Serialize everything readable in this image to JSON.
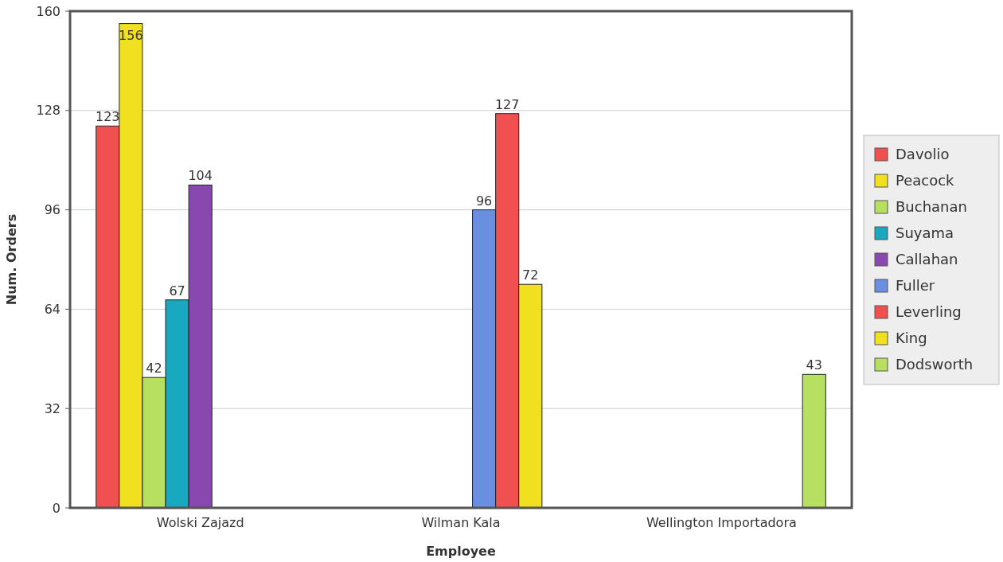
{
  "chart_data": {
    "type": "bar",
    "xlabel": "Employee",
    "ylabel": "Num. Orders",
    "categories": [
      "Wolski Zajazd",
      "Wilman Kala",
      "Wellington Importadora"
    ],
    "series": [
      {
        "name": "Davolio",
        "color": "#f05050",
        "values": [
          123,
          null,
          null
        ]
      },
      {
        "name": "Peacock",
        "color": "#f0e020",
        "values": [
          156,
          null,
          null
        ]
      },
      {
        "name": "Buchanan",
        "color": "#b8e060",
        "values": [
          42,
          null,
          null
        ]
      },
      {
        "name": "Suyama",
        "color": "#18a8c0",
        "values": [
          67,
          null,
          null
        ]
      },
      {
        "name": "Callahan",
        "color": "#8848b0",
        "values": [
          104,
          null,
          null
        ]
      },
      {
        "name": "Fuller",
        "color": "#6a8ee0",
        "values": [
          null,
          96,
          null
        ]
      },
      {
        "name": "Leverling",
        "color": "#f05050",
        "values": [
          null,
          127,
          null
        ]
      },
      {
        "name": "King",
        "color": "#f0e020",
        "values": [
          null,
          72,
          null
        ]
      },
      {
        "name": "Dodsworth",
        "color": "#b8e060",
        "values": [
          null,
          null,
          43
        ]
      }
    ],
    "ylim": [
      0,
      160
    ],
    "yticks": [
      0,
      32,
      64,
      96,
      128,
      160
    ],
    "grid": "y",
    "legend": "right",
    "data_labels": true
  }
}
